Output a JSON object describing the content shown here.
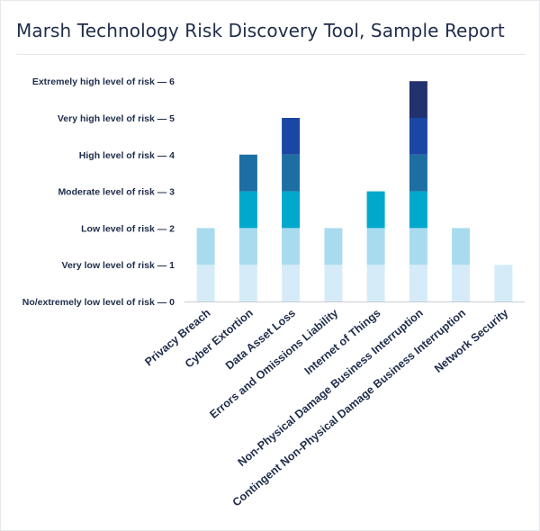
{
  "header": {
    "title": "Marsh Technology Risk Discovery Tool, Sample Report"
  },
  "chart_data": {
    "type": "bar",
    "stacked": true,
    "title": "Marsh Technology Risk Discovery Tool, Sample Report",
    "xlabel": "",
    "ylabel": "",
    "ylim": [
      0,
      6
    ],
    "grid": false,
    "legend": "none",
    "y_ticks": [
      {
        "value": 0,
        "label": "No/extremely low level of risk — 0"
      },
      {
        "value": 1,
        "label": "Very low level of risk — 1"
      },
      {
        "value": 2,
        "label": "Low level of risk — 2"
      },
      {
        "value": 3,
        "label": "Moderate level of risk — 3"
      },
      {
        "value": 4,
        "label": "High level of risk — 4"
      },
      {
        "value": 5,
        "label": "Very high level of risk — 5"
      },
      {
        "value": 6,
        "label": "Extremely high level of risk — 6"
      }
    ],
    "categories": [
      "Privacy Breach",
      "Cyber  Extortion",
      "Data Asset Loss",
      "Errors and Omissions Liability",
      "Internet of Things",
      "Non-Physical Damage Business Interruption",
      "Contingent Non-Physical Damage Business Interruption",
      "Network Security"
    ],
    "values": [
      2,
      4,
      5,
      2,
      3,
      6,
      2,
      1
    ],
    "level_colors": [
      "#d5ecf8",
      "#a9dbef",
      "#00a8cc",
      "#1d6fa3",
      "#1b47a4",
      "#22326e"
    ]
  }
}
